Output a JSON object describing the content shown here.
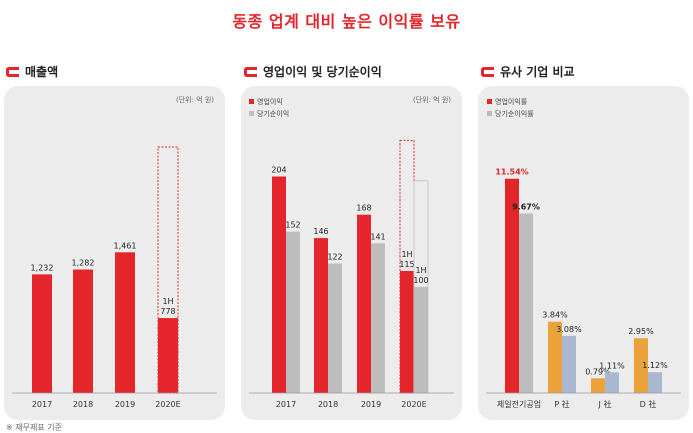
{
  "page_title": "동종 업계 대비 높은 이익률 보유",
  "footnote": "※ 재무제표 기준",
  "colors": {
    "red": "#e4262c",
    "gray": "#bdbdbd",
    "orange": "#eba23b",
    "blue": "#aab7d0",
    "panel": "#ececec"
  },
  "chart_data": [
    {
      "type": "bar",
      "title": "매출액",
      "unit": "(단위: 억 원)",
      "categories": [
        "2017",
        "2018",
        "2019",
        "2020E"
      ],
      "series": [
        {
          "values": [
            1232,
            1282,
            1461,
            778
          ]
        }
      ],
      "value_labels": [
        "1,232",
        "1,282",
        "1,461",
        "1H\n778"
      ],
      "projection": {
        "category": "2020E",
        "outline_top": 2555
      },
      "ylim": [
        0,
        2700
      ]
    },
    {
      "type": "bar",
      "title": "영업이익 및 당기순이익",
      "unit": "(단위: 억 원)",
      "categories": [
        "2017",
        "2018",
        "2019",
        "2020E"
      ],
      "series": [
        {
          "name": "영업이익",
          "values": [
            204,
            146,
            168,
            115
          ]
        },
        {
          "name": "당기순이익",
          "values": [
            152,
            122,
            141,
            100
          ]
        }
      ],
      "value_labels": [
        [
          "204",
          "146",
          "168",
          "1H\n115"
        ],
        [
          "152",
          "122",
          "141",
          "1H\n100"
        ]
      ],
      "projection": {
        "category": "2020E",
        "outline_tops": [
          238,
          200
        ]
      },
      "ylim": [
        0,
        245
      ]
    },
    {
      "type": "bar",
      "title": "유사 기업 비교",
      "categories": [
        "제일전기공업",
        "P 社",
        "J 社",
        "D 社"
      ],
      "series": [
        {
          "name": "영업이익률",
          "values": [
            11.54,
            3.84,
            0.79,
            2.95
          ]
        },
        {
          "name": "당기순이익률",
          "values": [
            9.67,
            3.08,
            1.11,
            1.12
          ]
        }
      ],
      "value_labels": [
        [
          "11.54%",
          "3.84%",
          "0.79%",
          "2.95%"
        ],
        [
          "9.67%",
          "3.08%",
          "1.11%",
          "1.12%"
        ]
      ],
      "ylim": [
        0,
        14
      ]
    }
  ]
}
